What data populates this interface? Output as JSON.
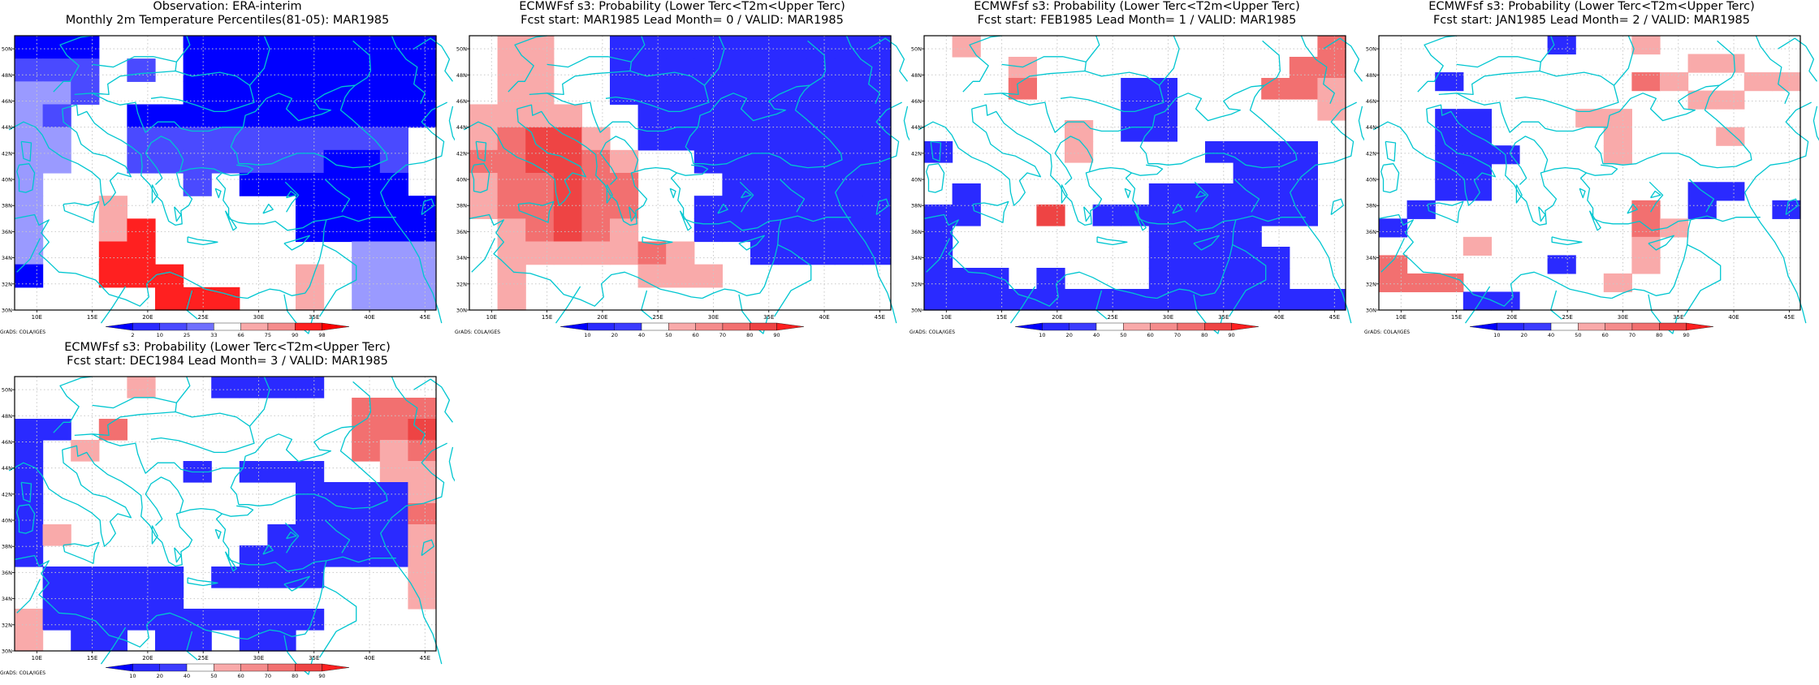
{
  "colors": {
    "below": {
      "2": "#0000ff",
      "10": "#2a2aff",
      "20": "#3c3cff",
      "25": "#4a4aff",
      "33": "#7070ff",
      "40": "#9a9aff"
    },
    "above": {
      "50": "#f9aaaa",
      "60": "#f58c8c",
      "66": "#f9aaaa",
      "70": "#f27070",
      "75": "#f58c8c",
      "80": "#ee4444",
      "90": "#ff2020",
      "98": "#ff0000"
    },
    "coast": "#00c6d0",
    "grid": "#c8c8c8"
  },
  "map": {
    "lon_ticks": [
      "10E",
      "15E",
      "20E",
      "25E",
      "30E",
      "35E",
      "40E",
      "45E"
    ],
    "lat_ticks": [
      "30N",
      "32N",
      "34N",
      "36N",
      "38N",
      "40N",
      "42N",
      "44N",
      "46N",
      "48N",
      "50N"
    ]
  },
  "grads_label": "GrADS: COLA/IGES",
  "panels": [
    {
      "title1": "Observation: ERA-interim",
      "title2": "Monthly 2m Temperature Percentiles(81-05): MAR1985",
      "legend": [
        "2",
        "10",
        "25",
        "33",
        "66",
        "75",
        "90",
        "98"
      ],
      "grid": [
        "AAA...AAAAAAAAA",
        "BBB.B.AAAAAAAAA",
        "CCB...AAAAAAAAA",
        "CB..AAAAAAAAAAA",
        "CC..BBBBBBBBBB.",
        "CC..BBBBBBBAAB.",
        "C.....B.AAAAAA.",
        "C..q......AAAAA",
        "C..qr.....AAAAA",
        "C..rr.......CCC",
        "A..rrr....q.CCC",
        ".....rrr..q.CCC"
      ]
    },
    {
      "title1": "ECMWFsf s3: Probability (Lower Terc<T2m<Upper Terc)",
      "title2": "Fcst start: MAR1985  Lead Month= 0 / VALID: MAR1985",
      "legend": [
        "10",
        "20",
        "40",
        "50",
        "60",
        "70",
        "80",
        "90"
      ],
      "grid": [
        ".pp..AAAAAAAAAA",
        ".pp..AAAAAAAAAA",
        ".pp..AAAAAAAAAA",
        "pppp..AAAAAAAAA",
        "pqrrp.AAAAAAAAA",
        "qqrrqp..AAAAAAA",
        "pqqrqq...AAAAAA",
        "pqqrqq..AAAAAAA",
        ".pqrqp..AAAAAAA",
        ".pppppqp..AAAAA",
        ".p....ppp......",
        ".p............."
      ]
    },
    {
      "title1": "ECMWFsf s3: Probability (Lower Terc<T2m<Upper Terc)",
      "title2": "Fcst start: FEB1985  Lead Month= 1 / VALID: MAR1985",
      "legend": [
        "10",
        "20",
        "40",
        "50",
        "60",
        "70",
        "80",
        "90"
      ],
      "grid": [
        ".p............q",
        "...p.........qq",
        "...q...AA...qqp",
        ".......AA.....p",
        ".....p.AA......",
        "A....p....AAAA.",
        "...........AAA.",
        ".A......AAAAAA.",
        "AA..r.AAAAAAAA.",
        "A.......AAAA...",
        "A.......AAAAA..",
        "AAA.A...AAAAA..",
        "AAAAAAAAAAAAAAA"
      ]
    },
    {
      "title1": "ECMWFsf s3: Probability (Lower Terc<T2m<Upper Terc)",
      "title2": "Fcst start: JAN1985  Lead Month= 2 / VALID: MAR1985",
      "legend": [
        "10",
        "20",
        "40",
        "50",
        "60",
        "70",
        "80",
        "90"
      ],
      "grid": [
        "......A..p.....",
        "...........pp..",
        "..A......qp..pp",
        "...........pp..",
        "..AA...pp......",
        "..AA....p...p..",
        "..AAA...p......",
        "..AA...........",
        "..AA.......AA..",
        ".A.......q.A..A",
        "A........qp....",
        "...p.....p.....",
        "q.....A..p.....",
        "qqq.....p......",
        "...AA.........."
      ]
    },
    {
      "title1": "ECMWFsf s3: Probability (Lower Terc<T2m<Upper Terc)",
      "title2": "Fcst start: DEC1984  Lead Month= 3 / VALID: MAR1985",
      "legend": [
        "10",
        "20",
        "40",
        "50",
        "60",
        "70",
        "80",
        "90"
      ],
      "grid": [
        "....p..AAAA....",
        "............qqq",
        "AA.q........qqr",
        "A.p.........qpq",
        "A.....A.AAA..pp",
        "A.........AAAAp",
        "A.........AAAAq",
        "Ap.......AAAAAp",
        "A.......AAAAAAp",
        ".AAAAA.AAAA...p",
        ".AAAAA........p",
        "pAAAAAAAAAA....",
        "p.AA.AA.AA....."
      ]
    }
  ]
}
